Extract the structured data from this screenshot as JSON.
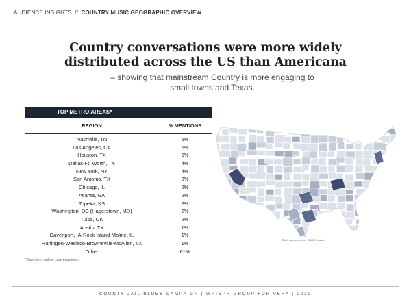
{
  "header": {
    "section": "AUDIENCE INSIGHTS",
    "separator": "//",
    "topic": "COUNTRY MUSIC GEOGRAPHIC OVERVIEW"
  },
  "title": "Country conversations were more widely distributed across the US than Americana",
  "subtitle": "– showing that mainstream Country is more engaging to small towns and Texas.",
  "table": {
    "heading": "TOP METRO AREAS*",
    "col_region": "REGION",
    "col_mentions": "% MENTIONS",
    "rows": [
      {
        "region": "Nashville, TN",
        "mentions": "5%"
      },
      {
        "region": "Los Angeles, CA",
        "mentions": "5%"
      },
      {
        "region": "Houston, TX",
        "mentions": "5%"
      },
      {
        "region": "Dallas-Ft. Worth, TX",
        "mentions": "4%"
      },
      {
        "region": "New York, NY",
        "mentions": "4%"
      },
      {
        "region": "San Antonio, TX",
        "mentions": "3%"
      },
      {
        "region": "Chicago, IL",
        "mentions": "2%"
      },
      {
        "region": "Atlanta, GA",
        "mentions": "2%"
      },
      {
        "region": "Topeka, KS",
        "mentions": "2%"
      },
      {
        "region": "Washington, DC (Hagerstown, MD)",
        "mentions": "2%"
      },
      {
        "region": "Tulsa, OK",
        "mentions": "2%"
      },
      {
        "region": "Austin, TX",
        "mentions": "1%"
      },
      {
        "region": "Davenport, IA-Rock Island-Moline, IL",
        "mentions": "1%"
      },
      {
        "region": "Harlingen-Weslaco-Brownsville-McAllen, TX",
        "mentions": "1%"
      },
      {
        "region": "Other",
        "mentions": "61%"
      }
    ],
    "footnote": "*Based on online conversations."
  },
  "map": {
    "note": "DMA data based on 128,269 posts",
    "colors": {
      "base": "#dde1ea",
      "light": "#c9cedb",
      "mid": "#a7afc2",
      "dark": "#5b6a8c",
      "darkest": "#3b4a6e",
      "border": "#ffffff"
    }
  },
  "footer": "COUNTY JAIL BLUES CAMPAIGN | WHISPR GROUP FOR VERA | 2020"
}
